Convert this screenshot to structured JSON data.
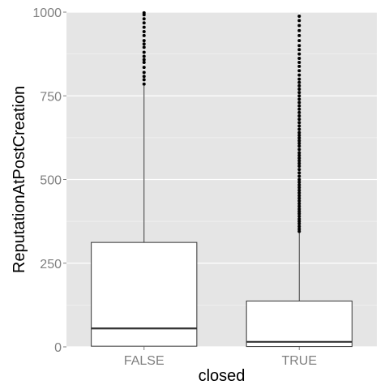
{
  "chart_data": {
    "type": "boxplot",
    "xlabel": "closed",
    "ylabel": "ReputationAtPostCreation",
    "categories": [
      "FALSE",
      "TRUE"
    ],
    "ylim": [
      0,
      1000
    ],
    "yticks": [
      0,
      250,
      500,
      750,
      1000
    ],
    "grid": true,
    "boxes": [
      {
        "category": "FALSE",
        "min": 1,
        "q1": 2,
        "median": 55,
        "q3": 312,
        "whisker_high": 780,
        "outliers": [
          785,
          798,
          808,
          820,
          835,
          850,
          858,
          868,
          880,
          895,
          905,
          915,
          930,
          942,
          955,
          968,
          980,
          992,
          998
        ]
      },
      {
        "category": "TRUE",
        "min": 1,
        "q1": 1,
        "median": 15,
        "q3": 137,
        "whisker_high": 345,
        "outliers": [
          345,
          352,
          360,
          368,
          375,
          382,
          390,
          398,
          405,
          412,
          420,
          428,
          436,
          444,
          452,
          460,
          468,
          476,
          484,
          492,
          500,
          510,
          520,
          530,
          540,
          548,
          556,
          564,
          572,
          580,
          590,
          600,
          608,
          616,
          624,
          632,
          640,
          650,
          660,
          670,
          680,
          690,
          700,
          710,
          720,
          730,
          740,
          750,
          760,
          770,
          780,
          790,
          800,
          812,
          825,
          838,
          850,
          862,
          875,
          888,
          900,
          915,
          930,
          945,
          960,
          975,
          988
        ]
      }
    ]
  }
}
